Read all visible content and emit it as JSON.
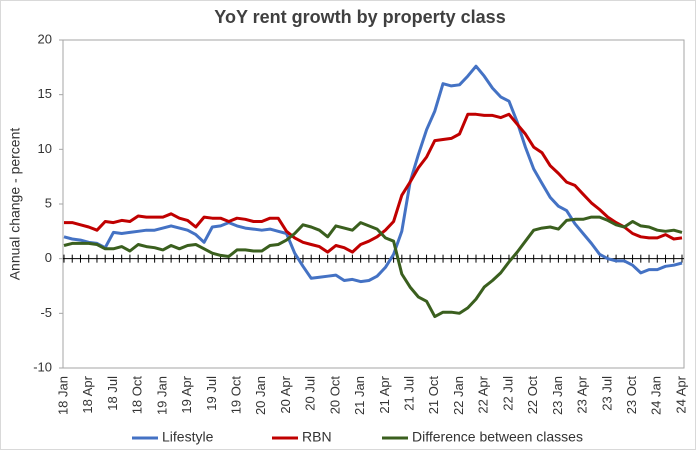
{
  "chart_data": {
    "type": "line",
    "title": "YoY rent growth by property class",
    "y_label": "Annual change - percent",
    "categories": [
      "18 Jan",
      null,
      null,
      "18 Apr",
      null,
      null,
      "18 Jul",
      null,
      null,
      "18 Oct",
      null,
      null,
      "19 Jan",
      null,
      null,
      "19 Apr",
      null,
      null,
      "19 Jul",
      null,
      null,
      "19 Oct",
      null,
      null,
      "20 Jan",
      null,
      null,
      "20 Apr",
      null,
      null,
      "20 Jul",
      null,
      null,
      "20 Oct",
      null,
      null,
      "21 Jan",
      null,
      null,
      "21 Apr",
      null,
      null,
      "21 Jul",
      null,
      null,
      "21 Oct",
      null,
      null,
      "22 Jan",
      null,
      null,
      "22 Apr",
      null,
      null,
      "22 Jul",
      null,
      null,
      "22 Oct",
      null,
      null,
      "23 Jan",
      null,
      null,
      "23 Apr",
      null,
      null,
      "23 Jul",
      null,
      null,
      "23 Oct",
      null,
      null,
      "24 Jan",
      null,
      null,
      "24 Apr"
    ],
    "series": [
      {
        "name": "Lifestyle",
        "color": "#4472c4",
        "values": [
          2.0,
          1.8,
          1.7,
          1.5,
          1.4,
          1.0,
          2.4,
          2.3,
          2.4,
          2.5,
          2.6,
          2.6,
          2.8,
          3.0,
          2.8,
          2.6,
          2.2,
          1.5,
          2.9,
          3.0,
          3.3,
          3.0,
          2.8,
          2.7,
          2.6,
          2.7,
          2.5,
          2.3,
          0.5,
          -0.7,
          -1.8,
          -1.7,
          -1.6,
          -1.5,
          -2.0,
          -1.9,
          -2.1,
          -2.0,
          -1.6,
          -0.8,
          0.4,
          2.5,
          7.0,
          9.5,
          11.8,
          13.5,
          16.0,
          15.8,
          15.9,
          16.7,
          17.6,
          16.7,
          15.6,
          14.8,
          14.4,
          12.5,
          10.2,
          8.2,
          6.9,
          5.6,
          4.8,
          4.4,
          3.2,
          2.3,
          1.4,
          0.4,
          0.0,
          -0.2,
          -0.2,
          -0.6,
          -1.3,
          -1.0,
          -1.0,
          -0.7,
          -0.6,
          -0.4
        ]
      },
      {
        "name": "RBN",
        "color": "#c00000",
        "values": [
          3.3,
          3.3,
          3.1,
          2.9,
          2.6,
          3.4,
          3.3,
          3.5,
          3.4,
          3.9,
          3.8,
          3.8,
          3.8,
          4.1,
          3.7,
          3.5,
          2.9,
          3.8,
          3.7,
          3.7,
          3.4,
          3.7,
          3.6,
          3.4,
          3.4,
          3.7,
          3.7,
          2.5,
          1.9,
          1.5,
          1.3,
          1.1,
          0.6,
          1.2,
          1.0,
          0.6,
          1.3,
          1.6,
          2.0,
          2.6,
          3.4,
          5.8,
          7.0,
          8.3,
          9.3,
          10.8,
          10.9,
          11.0,
          11.4,
          13.2,
          13.2,
          13.1,
          13.1,
          12.9,
          13.2,
          12.3,
          11.4,
          10.2,
          9.7,
          8.5,
          7.8,
          7.0,
          6.7,
          5.9,
          5.1,
          4.5,
          3.8,
          3.3,
          2.9,
          2.3,
          2.0,
          1.9,
          1.9,
          2.2,
          1.8,
          1.9
        ]
      },
      {
        "name": "Difference between classes",
        "color": "#3a5f1e",
        "values": [
          1.2,
          1.4,
          1.4,
          1.4,
          1.3,
          0.9,
          0.9,
          1.1,
          0.7,
          1.3,
          1.1,
          1.0,
          0.8,
          1.2,
          0.9,
          1.2,
          1.3,
          0.9,
          0.5,
          0.3,
          0.2,
          0.8,
          0.8,
          0.7,
          0.7,
          1.2,
          1.3,
          1.7,
          2.3,
          3.1,
          2.9,
          2.6,
          2.0,
          3.0,
          2.8,
          2.6,
          3.3,
          3.0,
          2.7,
          1.9,
          1.6,
          -1.4,
          -2.6,
          -3.5,
          -3.9,
          -5.3,
          -4.9,
          -4.9,
          -5.0,
          -4.5,
          -3.7,
          -2.6,
          -2.0,
          -1.3,
          -0.3,
          0.6,
          1.6,
          2.6,
          2.8,
          2.9,
          2.7,
          3.5,
          3.6,
          3.6,
          3.8,
          3.8,
          3.5,
          3.1,
          2.9,
          3.4,
          3.0,
          2.9,
          2.6,
          2.5,
          2.6,
          2.4
        ]
      }
    ],
    "ylim": [
      -10,
      20
    ],
    "yticks": [
      -10,
      -5,
      0,
      5,
      10,
      15,
      20
    ],
    "grid": false
  }
}
